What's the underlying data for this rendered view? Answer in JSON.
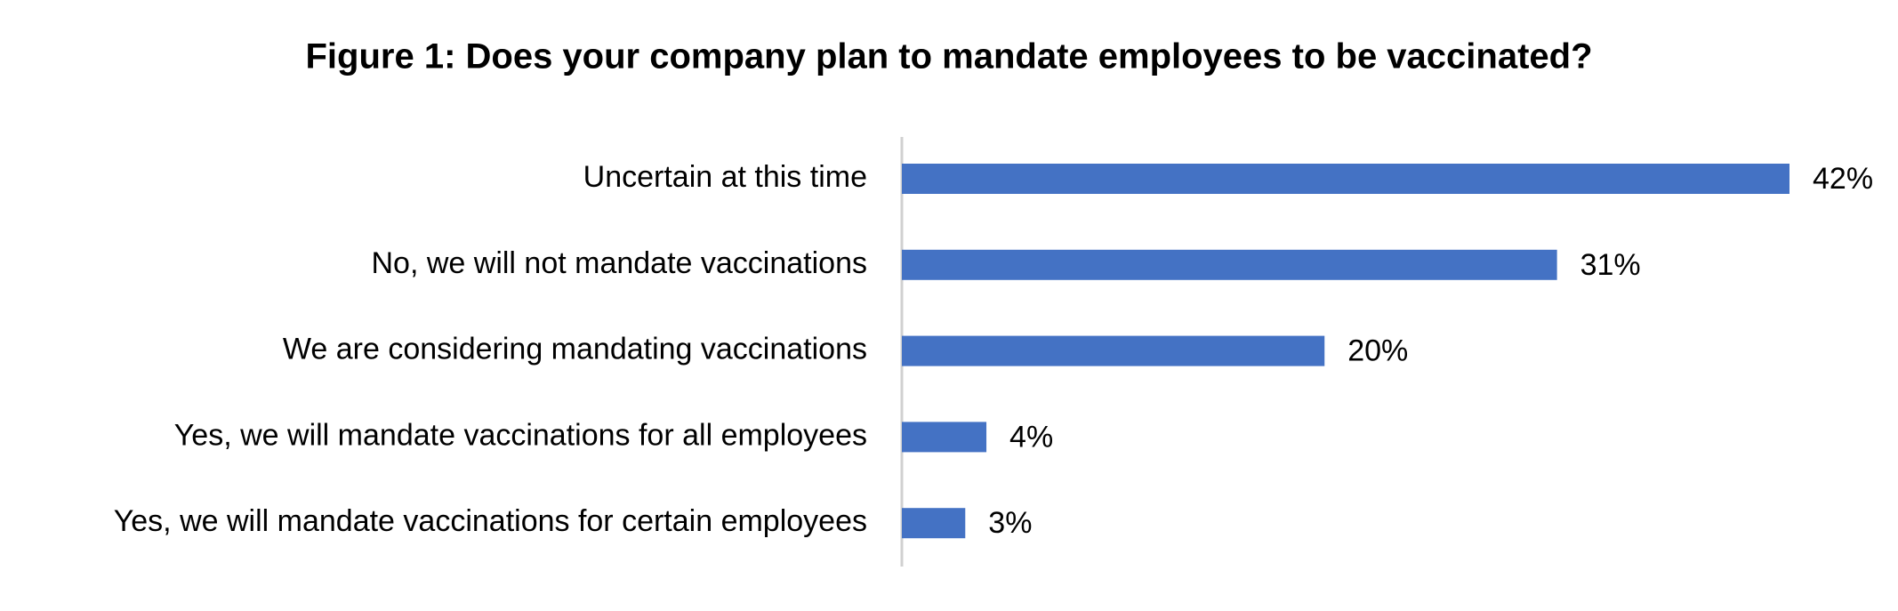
{
  "chart_data": {
    "type": "bar",
    "orientation": "horizontal",
    "title": "Figure 1: Does your company plan to mandate employees to be vaccinated?",
    "categories": [
      "Uncertain at this time",
      "No, we will not mandate vaccinations",
      "We are considering mandating vaccinations",
      "Yes, we will mandate vaccinations for all employees",
      "Yes, we will mandate vaccinations for certain employees"
    ],
    "values": [
      42,
      31,
      20,
      4,
      3
    ],
    "value_labels": [
      "42%",
      "31%",
      "20%",
      "4%",
      "3%"
    ],
    "color": "#4472c4"
  }
}
